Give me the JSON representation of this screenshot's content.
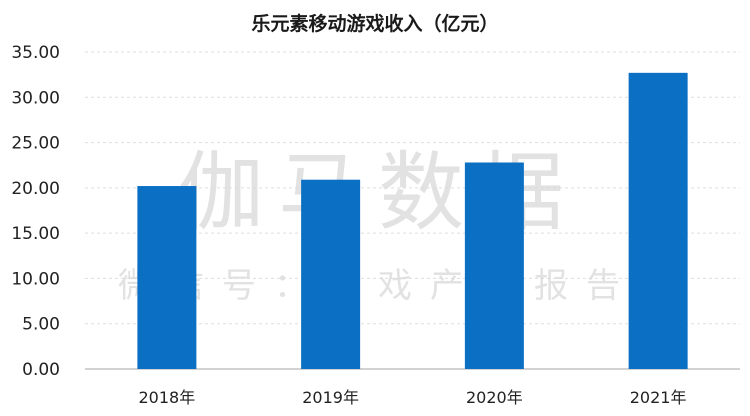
{
  "chart_data": {
    "type": "bar",
    "title": "乐元素移动游戏收入（亿元）",
    "categories": [
      "2018年",
      "2019年",
      "2020年",
      "2021年"
    ],
    "values": [
      20.2,
      20.9,
      22.8,
      32.7
    ],
    "ylim": [
      0,
      35
    ],
    "yticks": [
      "0.00",
      "5.00",
      "10.00",
      "15.00",
      "20.00",
      "25.00",
      "30.00",
      "35.00"
    ],
    "grid": true,
    "bar_color": "#0b6fc4"
  },
  "watermark": {
    "main": "伽马数据",
    "sub": "微信号：游戏产业报告"
  }
}
